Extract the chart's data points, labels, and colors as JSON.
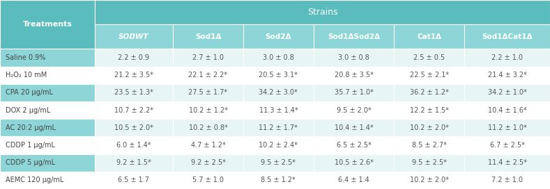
{
  "title_header": "Strains",
  "col_header": "Treatments",
  "columns": [
    "SODWT",
    "Sod1Δ",
    "Sod2Δ",
    "Sod1ΔSod2Δ",
    "Cat1Δ",
    "Sod1ΔCat1Δ"
  ],
  "rows": [
    "Saline 0.9%",
    "H₂O₂ 10 mM",
    "CPA 20 µg/mL",
    "DOX 2 µg/mL",
    "AC 20:2 µg/mL",
    "CDDP 1 µg/mL",
    "CDDP 5 µg/mL",
    "AEMC 120 µg/mL"
  ],
  "data": [
    [
      "2.2 ± 0.9",
      "2.7 ± 1.0",
      "3.0 ± 0.8",
      "3.0 ± 0.8",
      "2.5 ± 0.5",
      "2.2 ± 1.0"
    ],
    [
      "21.2 ± 3.5*",
      "22.1 ± 2.2*",
      "20.5 ± 3.1*",
      "20.8 ± 3.5*",
      "22.5 ± 2.1*",
      "21.4 ± 3.2*"
    ],
    [
      "23.5 ± 1.3*",
      "27.5 ± 1.7*",
      "34.2 ± 3.0*",
      "35.7 ± 1.0*",
      "36.2 ± 1.2*",
      "34.2 ± 1.0*"
    ],
    [
      "10.7 ± 2.2*",
      "10.2 ± 1.2*",
      "11.3 ± 1.4*",
      "9.5 ± 2.0*",
      "12.2 ± 1.5*",
      "10.4 ± 1.6*"
    ],
    [
      "10.5 ± 2.0*",
      "10.2 ± 0.8*",
      "11.2 ± 1.7*",
      "10.4 ± 1.4*",
      "10.2 ± 2.0*",
      "11.2 ± 1.0*"
    ],
    [
      "6.0 ± 1.4*",
      "4.7 ± 1.2*",
      "10.2 ± 2.4*",
      "6.5 ± 2.5*",
      "8.5 ± 2.7*",
      "6.7 ± 2.5*"
    ],
    [
      "9.2 ± 1.5*",
      "9.2 ± 2.5*",
      "9.5 ± 2.5*",
      "10.5 ± 2.6*",
      "9.5 ± 2.5*",
      "11.4 ± 2.5*"
    ],
    [
      "6.5 ± 1.7",
      "5.7 ± 1.0",
      "8.5 ± 1.2*",
      "6.4 ± 1.4",
      "10.2 ± 2.0*",
      "7.2 ± 1.0"
    ]
  ],
  "header_bg": "#5bbcbe",
  "subheader_bg": "#8dd5d6",
  "row_bg_even": "#e8f5f5",
  "row_bg_odd": "#ffffff",
  "header_text_color": "#ffffff",
  "cell_text_color": "#555555",
  "row_label_text_color": "#444444",
  "border_color": "#aadddd",
  "col_header_italic": [
    true,
    false,
    false,
    false,
    false,
    false
  ],
  "figsize": [
    7.89,
    2.72
  ],
  "dpi": 100
}
